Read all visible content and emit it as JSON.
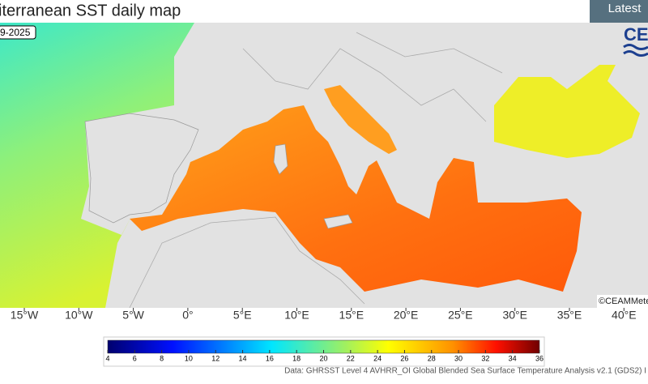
{
  "header": {
    "title": "iterranean SST daily map",
    "button": "Latest",
    "logo": "CE"
  },
  "map": {
    "date": "9-2025",
    "credit": "©CEAMMete",
    "lon_labels": [
      "15°W",
      "10°W",
      "5°W",
      "0°",
      "5°E",
      "10°E",
      "15°E",
      "20°E",
      "25°E",
      "30°E",
      "35°E",
      "40°E"
    ]
  },
  "colorbar": {
    "range": [
      4,
      36
    ],
    "ticks": [
      4,
      6,
      8,
      10,
      12,
      14,
      16,
      18,
      20,
      22,
      24,
      26,
      28,
      30,
      32,
      34,
      36
    ]
  },
  "source": "Data: GHRSST Level 4 AVHRR_OI Global Blended Sea Surface Temperature Analysis v2.1 (GDS2) I"
}
